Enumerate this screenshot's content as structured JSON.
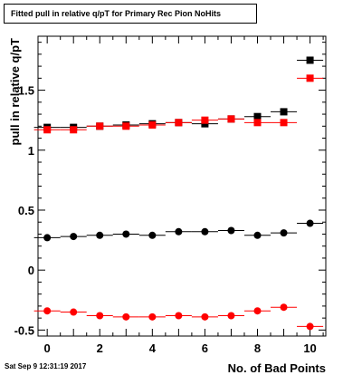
{
  "title": "Fitted pull in relative q/pT for Primary Rec Pion NoHits",
  "timestamp": "Sat Sep  9 12:31:19 2017",
  "chart_data": {
    "type": "scatter",
    "xlabel": "No. of Bad Points",
    "ylabel": "pull in relative q/pT",
    "xlim": [
      -0.35,
      10.6
    ],
    "ylim": [
      -0.55,
      1.95
    ],
    "x_ticks": [
      0,
      2,
      4,
      6,
      8,
      10
    ],
    "y_ticks": [
      -0.5,
      0,
      0.5,
      1,
      1.5
    ],
    "y_tick_labels": [
      "-0.5",
      "0",
      "0.5",
      "1",
      "1.5"
    ],
    "grid": false,
    "legend": "none",
    "series": [
      {
        "marker": "square",
        "color": "#000000",
        "x": [
          0,
          1,
          2,
          3,
          4,
          5,
          6,
          7,
          8,
          9,
          10
        ],
        "y": [
          1.19,
          1.19,
          1.2,
          1.21,
          1.22,
          1.23,
          1.22,
          1.26,
          1.28,
          1.32,
          1.75
        ]
      },
      {
        "marker": "square",
        "color": "#ff0000",
        "x": [
          0,
          1,
          2,
          3,
          4,
          5,
          6,
          7,
          8,
          9,
          10
        ],
        "y": [
          1.17,
          1.17,
          1.2,
          1.2,
          1.21,
          1.23,
          1.25,
          1.26,
          1.23,
          1.23,
          1.6
        ]
      },
      {
        "marker": "circle",
        "color": "#000000",
        "x": [
          0,
          1,
          2,
          3,
          4,
          5,
          6,
          7,
          8,
          9,
          10
        ],
        "y": [
          0.27,
          0.28,
          0.29,
          0.3,
          0.29,
          0.32,
          0.32,
          0.33,
          0.29,
          0.31,
          0.39
        ]
      },
      {
        "marker": "circle",
        "color": "#ff0000",
        "x": [
          0,
          1,
          2,
          3,
          4,
          5,
          6,
          7,
          8,
          9,
          10
        ],
        "y": [
          -0.34,
          -0.35,
          -0.38,
          -0.39,
          -0.39,
          -0.38,
          -0.39,
          -0.38,
          -0.34,
          -0.31,
          -0.47
        ]
      }
    ]
  }
}
